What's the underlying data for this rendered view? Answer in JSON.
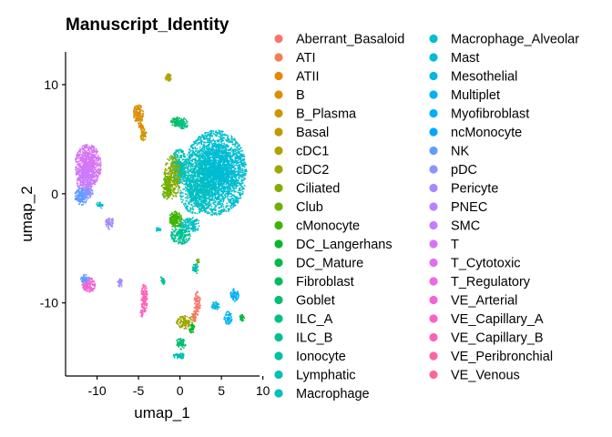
{
  "chart_data": {
    "type": "scatter",
    "title": "Manuscript_Identity",
    "xlabel": "umap_1",
    "ylabel": "umap_2",
    "xlim": [
      -13.8,
      9.6
    ],
    "ylim": [
      -16.7,
      13.0
    ],
    "xticks": [
      -10,
      -5,
      0,
      5,
      10
    ],
    "xtick_labels": [
      "-10",
      "-5",
      "0",
      "5",
      "10"
    ],
    "yticks": [
      -10,
      0,
      10
    ],
    "ytick_labels": [
      "-10",
      "0",
      "10"
    ],
    "grid": false,
    "legend_position": "right",
    "legend_columns": 2,
    "categories": [
      {
        "name": "Aberrant_Basaloid",
        "color": "#F8766D"
      },
      {
        "name": "ATI",
        "color": "#F07F4F"
      },
      {
        "name": "ATII",
        "color": "#E78700"
      },
      {
        "name": "B",
        "color": "#DB8E00"
      },
      {
        "name": "B_Plasma",
        "color": "#CE9600"
      },
      {
        "name": "Basal",
        "color": "#C09B00"
      },
      {
        "name": "cDC1",
        "color": "#B0A100"
      },
      {
        "name": "cDC2",
        "color": "#9DA700"
      },
      {
        "name": "Ciliated",
        "color": "#87AC00"
      },
      {
        "name": "Club",
        "color": "#6BB100"
      },
      {
        "name": "cMonocyte",
        "color": "#3DB500"
      },
      {
        "name": "DC_Langerhans",
        "color": "#00B82A"
      },
      {
        "name": "DC_Mature",
        "color": "#00BA47"
      },
      {
        "name": "Fibroblast",
        "color": "#00BC5E"
      },
      {
        "name": "Goblet",
        "color": "#00BE71"
      },
      {
        "name": "ILC_A",
        "color": "#00C082"
      },
      {
        "name": "ILC_B",
        "color": "#00C093"
      },
      {
        "name": "Ionocyte",
        "color": "#00C0A2"
      },
      {
        "name": "Lymphatic",
        "color": "#00C0B1"
      },
      {
        "name": "Macrophage",
        "color": "#00BFBF"
      },
      {
        "name": "Macrophage_Alveolar",
        "color": "#00BECC"
      },
      {
        "name": "Mast",
        "color": "#00BBD8"
      },
      {
        "name": "Mesothelial",
        "color": "#00B8E3"
      },
      {
        "name": "Multiplet",
        "color": "#00B3EE"
      },
      {
        "name": "Myofibroblast",
        "color": "#00AEF7"
      },
      {
        "name": "ncMonocyte",
        "color": "#00A6FF"
      },
      {
        "name": "NK",
        "color": "#619CFF"
      },
      {
        "name": "pDC",
        "color": "#8A94FF"
      },
      {
        "name": "Pericyte",
        "color": "#A58AFF"
      },
      {
        "name": "PNEC",
        "color": "#B983FF"
      },
      {
        "name": "SMC",
        "color": "#CA7BFC"
      },
      {
        "name": "T",
        "color": "#D774F5"
      },
      {
        "name": "T_Cytotoxic",
        "color": "#E36EED"
      },
      {
        "name": "T_Regulatory",
        "color": "#ED68E2"
      },
      {
        "name": "VE_Arterial",
        "color": "#F564D5"
      },
      {
        "name": "VE_Capillary_A",
        "color": "#FB61C7"
      },
      {
        "name": "VE_Capillary_B",
        "color": "#FF61B7"
      },
      {
        "name": "VE_Peribronchial",
        "color": "#FF63A6"
      },
      {
        "name": "VE_Venous",
        "color": "#FE6794"
      }
    ],
    "clusters": [
      {
        "label": "Macrophage_Alveolar",
        "cx": 4.2,
        "cy": 2.0,
        "rx": 3.8,
        "ry": 3.9,
        "n": 2600
      },
      {
        "label": "Macrophage",
        "cx": 2.0,
        "cy": 1.0,
        "rx": 2.3,
        "ry": 2.9,
        "n": 700
      },
      {
        "label": "Mast",
        "cx": 5.0,
        "cy": 2.5,
        "rx": 2.5,
        "ry": 2.2,
        "n": 500
      },
      {
        "label": "Lymphatic",
        "cx": -0.2,
        "cy": 2.6,
        "rx": 0.9,
        "ry": 1.6,
        "n": 300
      },
      {
        "label": "Ciliated",
        "cx": -1.0,
        "cy": 1.6,
        "rx": 1.0,
        "ry": 2.0,
        "n": 280
      },
      {
        "label": "Club",
        "cx": -1.7,
        "cy": 0.6,
        "rx": 0.6,
        "ry": 1.1,
        "n": 140
      },
      {
        "label": "cMonocyte",
        "cx": -0.6,
        "cy": -2.3,
        "rx": 0.8,
        "ry": 0.8,
        "n": 160
      },
      {
        "label": "ILC_B",
        "cx": 0.0,
        "cy": -3.7,
        "rx": 1.2,
        "ry": 0.9,
        "n": 200
      },
      {
        "label": "Macrophage",
        "cx": 1.2,
        "cy": -2.8,
        "rx": 1.2,
        "ry": 0.7,
        "n": 120
      },
      {
        "label": "T",
        "cx": -11.2,
        "cy": 2.6,
        "rx": 1.6,
        "ry": 2.0,
        "n": 750
      },
      {
        "label": "SMC",
        "cx": -11.5,
        "cy": 1.5,
        "rx": 1.2,
        "ry": 1.3,
        "n": 200
      },
      {
        "label": "NK",
        "cx": -12.0,
        "cy": -0.2,
        "rx": 0.8,
        "ry": 0.8,
        "n": 160
      },
      {
        "label": "pDC",
        "cx": -11.2,
        "cy": 0.2,
        "rx": 0.6,
        "ry": 0.6,
        "n": 80
      },
      {
        "label": "Pericyte",
        "cx": -8.6,
        "cy": -2.6,
        "rx": 0.5,
        "ry": 0.6,
        "n": 60
      },
      {
        "label": "B",
        "cx": -5.1,
        "cy": 7.4,
        "rx": 0.6,
        "ry": 0.9,
        "n": 150
      },
      {
        "label": "B_Plasma",
        "cx": -4.5,
        "cy": 5.5,
        "rx": 0.4,
        "ry": 0.6,
        "n": 60
      },
      {
        "label": "ATII",
        "cx": -4.8,
        "cy": 6.2,
        "rx": 0.3,
        "ry": 0.3,
        "n": 30
      },
      {
        "label": "cDC1",
        "cx": -1.5,
        "cy": 10.7,
        "rx": 0.4,
        "ry": 0.35,
        "n": 40
      },
      {
        "label": "Fibroblast",
        "cx": -0.5,
        "cy": 6.7,
        "rx": 0.7,
        "ry": 0.5,
        "n": 80
      },
      {
        "label": "ILC_A",
        "cx": 0.3,
        "cy": 6.5,
        "rx": 0.6,
        "ry": 0.5,
        "n": 70
      },
      {
        "label": "VE_Arterial",
        "cx": -11.1,
        "cy": -8.3,
        "rx": 0.8,
        "ry": 0.7,
        "n": 140
      },
      {
        "label": "NK",
        "cx": -11.6,
        "cy": -7.7,
        "rx": 0.5,
        "ry": 0.4,
        "n": 50
      },
      {
        "label": "Pericyte",
        "cx": -7.3,
        "cy": -8.1,
        "rx": 0.3,
        "ry": 0.4,
        "n": 30
      },
      {
        "label": "VE_Capillary_B",
        "cx": -4.4,
        "cy": -9.5,
        "rx": 0.4,
        "ry": 1.3,
        "n": 150
      },
      {
        "label": "ILC_B",
        "cx": -2.2,
        "cy": -7.9,
        "rx": 0.3,
        "ry": 0.4,
        "n": 30
      },
      {
        "label": "Ionocyte",
        "cx": 1.8,
        "cy": -6.8,
        "rx": 0.35,
        "ry": 0.5,
        "n": 40
      },
      {
        "label": "Aberrant_Basaloid",
        "cx": 2.0,
        "cy": -10.0,
        "rx": 0.4,
        "ry": 1.1,
        "n": 90
      },
      {
        "label": "ATI",
        "cx": 1.6,
        "cy": -11.2,
        "rx": 0.3,
        "ry": 0.5,
        "n": 40
      },
      {
        "label": "cDC2",
        "cx": 0.5,
        "cy": -11.7,
        "rx": 1.0,
        "ry": 0.6,
        "n": 120
      },
      {
        "label": "DC_Langerhans",
        "cx": 1.4,
        "cy": -12.3,
        "rx": 0.4,
        "ry": 0.4,
        "n": 40
      },
      {
        "label": "Goblet",
        "cx": 0.0,
        "cy": -13.7,
        "rx": 0.6,
        "ry": 0.5,
        "n": 70
      },
      {
        "label": "Lymphatic",
        "cx": -0.2,
        "cy": -14.8,
        "rx": 0.7,
        "ry": 0.3,
        "n": 60
      },
      {
        "label": "Mesothelial",
        "cx": 4.2,
        "cy": -10.2,
        "rx": 0.5,
        "ry": 0.4,
        "n": 50
      },
      {
        "label": "Multiplet",
        "cx": 5.7,
        "cy": -11.3,
        "rx": 0.5,
        "ry": 0.6,
        "n": 60
      },
      {
        "label": "Myofibroblast",
        "cx": 6.5,
        "cy": -9.2,
        "rx": 0.5,
        "ry": 0.6,
        "n": 70
      },
      {
        "label": "DC_Mature",
        "cx": 7.4,
        "cy": -11.3,
        "rx": 0.3,
        "ry": 0.3,
        "n": 30
      },
      {
        "label": "Mast",
        "cx": -9.8,
        "cy": -1.0,
        "rx": 0.4,
        "ry": 0.3,
        "n": 25
      },
      {
        "label": "Macrophage_Alveolar",
        "cx": -2.7,
        "cy": -3.2,
        "rx": 0.3,
        "ry": 0.2,
        "n": 20
      },
      {
        "label": "VE_Capillary_A",
        "cx": -4.7,
        "cy": -10.9,
        "rx": 0.2,
        "ry": 0.3,
        "n": 20
      },
      {
        "label": "Club",
        "cx": 2.1,
        "cy": -6.1,
        "rx": 0.2,
        "ry": 0.2,
        "n": 15
      }
    ]
  }
}
